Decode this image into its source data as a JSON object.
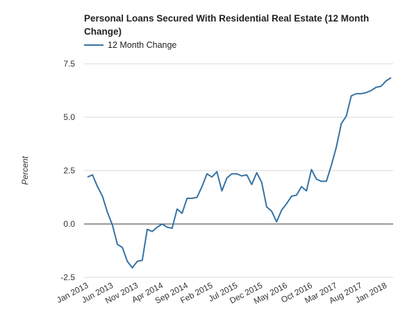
{
  "chart_data": {
    "type": "line",
    "title": "Personal Loans Secured With Residential Real Estate (12 Month Change)",
    "ylabel": "Percent",
    "xlabel": "",
    "ylim": [
      -2.5,
      7.5
    ],
    "yticks": [
      "7.5",
      "5.0",
      "2.5",
      "0.0",
      "-2.5"
    ],
    "ytick_values": [
      7.5,
      5.0,
      2.5,
      0.0,
      -2.5
    ],
    "xtick_labels": [
      "Jan 2013",
      "Jun 2013",
      "Nov 2013",
      "Apr 2014",
      "Sep 2014",
      "Feb 2015",
      "Jul 2015",
      "Dec 2015",
      "May 2016",
      "Oct 2016",
      "Mar 2017",
      "Aug 2017",
      "Jan 2018"
    ],
    "xtick_indices": [
      0,
      5,
      10,
      15,
      20,
      25,
      30,
      35,
      40,
      45,
      50,
      55,
      60
    ],
    "grid": "horizontal",
    "legend_position": "top-left",
    "line_color": "#3572a5",
    "series": [
      {
        "name": "12 Month Change",
        "values": [
          2.2,
          2.3,
          1.75,
          1.3,
          0.55,
          -0.05,
          -0.95,
          -1.1,
          -1.75,
          -2.05,
          -1.75,
          -1.7,
          -0.25,
          -0.35,
          -0.15,
          0.0,
          -0.15,
          -0.2,
          0.7,
          0.5,
          1.2,
          1.2,
          1.25,
          1.75,
          2.35,
          2.2,
          2.45,
          1.55,
          2.15,
          2.35,
          2.35,
          2.25,
          2.3,
          1.85,
          2.4,
          1.95,
          0.8,
          0.6,
          0.1,
          0.65,
          0.95,
          1.3,
          1.35,
          1.75,
          1.55,
          2.55,
          2.1,
          2.0,
          2.0,
          2.75,
          3.6,
          4.7,
          5.05,
          6.0,
          6.1,
          6.1,
          6.15,
          6.25,
          6.4,
          6.45,
          6.7,
          6.85
        ]
      }
    ]
  }
}
